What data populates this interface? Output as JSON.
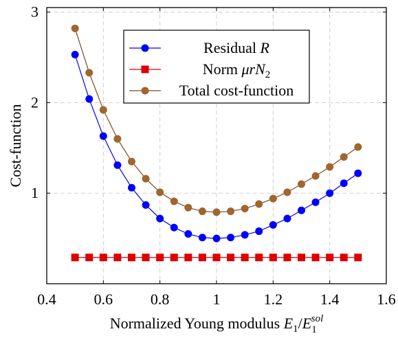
{
  "chart_data": {
    "type": "line",
    "title": "",
    "xlabel": "Normalized Young modulus E_1/E_1^sol",
    "xlabel_parts": {
      "prefix": "Normalized Young modulus ",
      "E": "E",
      "sub1": "1",
      "slash": "/",
      "E2": "E",
      "sub2": "1",
      "sup": "sol"
    },
    "ylabel": "Cost-function",
    "xlim": [
      0.4,
      1.6
    ],
    "ylim": [
      0,
      3.05
    ],
    "x_ticks": [
      0.4,
      0.6,
      0.8,
      1.0,
      1.2,
      1.4,
      1.6
    ],
    "x_tick_labels": [
      "0.4",
      "0.6",
      "0.8",
      "1",
      "1.2",
      "1.4",
      "1.6"
    ],
    "y_ticks": [
      1,
      2,
      3
    ],
    "y_tick_labels": [
      "1",
      "2",
      "3"
    ],
    "grid": true,
    "legend_position": "top-center",
    "x": [
      0.5,
      0.55,
      0.6,
      0.65,
      0.7,
      0.75,
      0.8,
      0.85,
      0.9,
      0.95,
      1.0,
      1.05,
      1.1,
      1.15,
      1.2,
      1.25,
      1.3,
      1.35,
      1.4,
      1.45,
      1.5
    ],
    "series": [
      {
        "name": "Residual R",
        "name_parts": {
          "text": "Residual ",
          "var": "R"
        },
        "color": "#0000ff",
        "marker": "circle",
        "values": [
          2.53,
          2.04,
          1.63,
          1.31,
          1.06,
          0.87,
          0.72,
          0.62,
          0.55,
          0.51,
          0.5,
          0.51,
          0.54,
          0.58,
          0.65,
          0.72,
          0.81,
          0.9,
          1.0,
          1.11,
          1.22
        ]
      },
      {
        "name": "Norm μrN_2",
        "name_parts": {
          "text": "Norm ",
          "var": "μrN",
          "sub": "2"
        },
        "color": "#dd0000",
        "marker": "square",
        "values": [
          0.29,
          0.29,
          0.29,
          0.29,
          0.29,
          0.29,
          0.29,
          0.29,
          0.29,
          0.29,
          0.29,
          0.29,
          0.29,
          0.29,
          0.29,
          0.29,
          0.29,
          0.29,
          0.29,
          0.29,
          0.29
        ]
      },
      {
        "name": "Total cost-function",
        "name_parts": {
          "text": "Total cost-function"
        },
        "color": "#a0662e",
        "line_color": "#7a4a1e",
        "marker": "circle",
        "values": [
          2.82,
          2.33,
          1.92,
          1.6,
          1.35,
          1.16,
          1.01,
          0.91,
          0.84,
          0.8,
          0.79,
          0.8,
          0.83,
          0.88,
          0.94,
          1.01,
          1.1,
          1.19,
          1.29,
          1.4,
          1.51
        ]
      }
    ]
  }
}
